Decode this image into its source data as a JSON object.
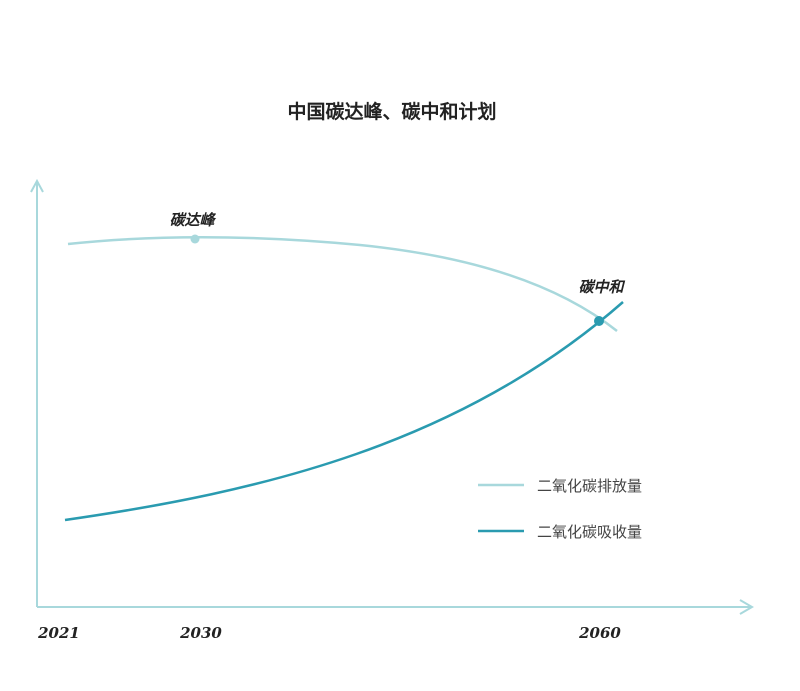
{
  "title": "中国碳达峰、碳中和计划",
  "annotations": {
    "peak": "碳达峰",
    "neutral": "碳中和"
  },
  "x_axis": {
    "labels": [
      "2021",
      "2030",
      "2060"
    ]
  },
  "legend": {
    "entries": [
      "二氧化碳排放量",
      "二氧化碳吸收量"
    ]
  }
}
